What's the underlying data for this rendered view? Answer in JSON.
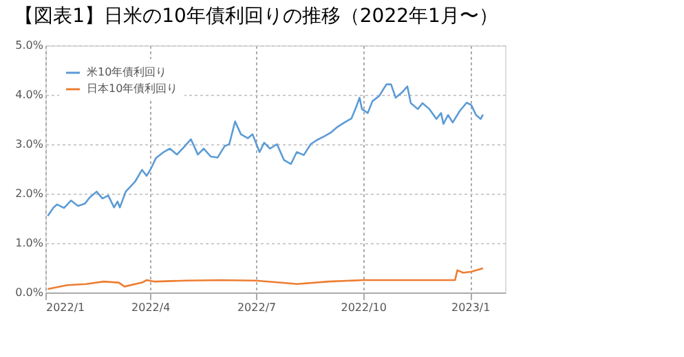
{
  "chart_data": {
    "type": "line",
    "title": "【図表1】日米の10年債利回りの推移（2022年1月〜）",
    "xlim": [
      "2022-01-01",
      "2023-01-31"
    ],
    "xticks": [
      {
        "value": "2022-01-01",
        "label": "2022/1"
      },
      {
        "value": "2022-04-01",
        "label": "2022/4"
      },
      {
        "value": "2022-07-01",
        "label": "2022/7"
      },
      {
        "value": "2022-10-01",
        "label": "2022/10"
      },
      {
        "value": "2023-01-01",
        "label": "2023/1"
      }
    ],
    "ylim": [
      0,
      5
    ],
    "yticks": [
      {
        "value": 0,
        "label": "0.0%"
      },
      {
        "value": 1,
        "label": "1.0%"
      },
      {
        "value": 2,
        "label": "2.0%"
      },
      {
        "value": 3,
        "label": "3.0%"
      },
      {
        "value": 4,
        "label": "4.0%"
      },
      {
        "value": 5,
        "label": "5.0%"
      }
    ],
    "grid": true,
    "legend": "top left",
    "line_style": "solid",
    "marker": "none",
    "series": [
      {
        "name": "米10年債利回り",
        "color": "#5b9bd5",
        "x": [
          "2022-01-03",
          "2022-01-08",
          "2022-01-11",
          "2022-01-17",
          "2022-01-23",
          "2022-01-29",
          "2022-02-04",
          "2022-02-08",
          "2022-02-14",
          "2022-02-19",
          "2022-02-24",
          "2022-03-01",
          "2022-03-04",
          "2022-03-06",
          "2022-03-11",
          "2022-03-19",
          "2022-03-25",
          "2022-03-29",
          "2022-04-02",
          "2022-04-06",
          "2022-04-12",
          "2022-04-18",
          "2022-04-24",
          "2022-04-30",
          "2022-05-06",
          "2022-05-12",
          "2022-05-17",
          "2022-05-23",
          "2022-05-29",
          "2022-06-04",
          "2022-06-08",
          "2022-06-13",
          "2022-06-18",
          "2022-06-24",
          "2022-06-28",
          "2022-07-04",
          "2022-07-08",
          "2022-07-13",
          "2022-07-19",
          "2022-07-25",
          "2022-07-31",
          "2022-08-05",
          "2022-08-11",
          "2022-08-17",
          "2022-08-22",
          "2022-08-28",
          "2022-09-03",
          "2022-09-09",
          "2022-09-15",
          "2022-09-21",
          "2022-09-25",
          "2022-09-28",
          "2022-09-30",
          "2022-10-05",
          "2022-10-09",
          "2022-10-15",
          "2022-10-21",
          "2022-10-25",
          "2022-10-29",
          "2022-11-04",
          "2022-11-08",
          "2022-11-11",
          "2022-11-17",
          "2022-11-21",
          "2022-11-27",
          "2022-12-03",
          "2022-12-07",
          "2022-12-09",
          "2022-12-13",
          "2022-12-17",
          "2022-12-23",
          "2022-12-29",
          "2023-01-02",
          "2023-01-06",
          "2023-01-10",
          "2023-01-12"
        ],
        "values": [
          1.55,
          1.72,
          1.78,
          1.71,
          1.86,
          1.75,
          1.8,
          1.92,
          2.04,
          1.9,
          1.96,
          1.72,
          1.84,
          1.72,
          2.04,
          2.24,
          2.48,
          2.36,
          2.52,
          2.72,
          2.83,
          2.91,
          2.79,
          2.94,
          3.1,
          2.79,
          2.91,
          2.75,
          2.73,
          2.96,
          3.0,
          3.46,
          3.2,
          3.12,
          3.2,
          2.84,
          3.03,
          2.91,
          3.0,
          2.68,
          2.6,
          2.84,
          2.78,
          3.0,
          3.08,
          3.15,
          3.23,
          3.35,
          3.44,
          3.52,
          3.75,
          3.94,
          3.71,
          3.63,
          3.87,
          3.98,
          4.21,
          4.21,
          3.94,
          4.06,
          4.17,
          3.83,
          3.71,
          3.83,
          3.71,
          3.51,
          3.63,
          3.41,
          3.59,
          3.44,
          3.67,
          3.84,
          3.79,
          3.59,
          3.51,
          3.6
        ]
      },
      {
        "name": "日本10年債利回り",
        "color": "#ed7d31",
        "x": [
          "2022-01-03",
          "2022-01-20",
          "2022-02-05",
          "2022-02-20",
          "2022-03-05",
          "2022-03-10",
          "2022-03-25",
          "2022-03-29",
          "2022-04-05",
          "2022-05-01",
          "2022-06-01",
          "2022-07-01",
          "2022-08-01",
          "2022-08-05",
          "2022-09-01",
          "2022-10-01",
          "2022-12-19",
          "2022-12-21",
          "2022-12-26",
          "2023-01-02",
          "2023-01-12"
        ],
        "values": [
          0.07,
          0.15,
          0.17,
          0.22,
          0.2,
          0.12,
          0.2,
          0.25,
          0.22,
          0.24,
          0.25,
          0.24,
          0.18,
          0.17,
          0.22,
          0.25,
          0.25,
          0.45,
          0.4,
          0.42,
          0.49
        ]
      }
    ]
  }
}
